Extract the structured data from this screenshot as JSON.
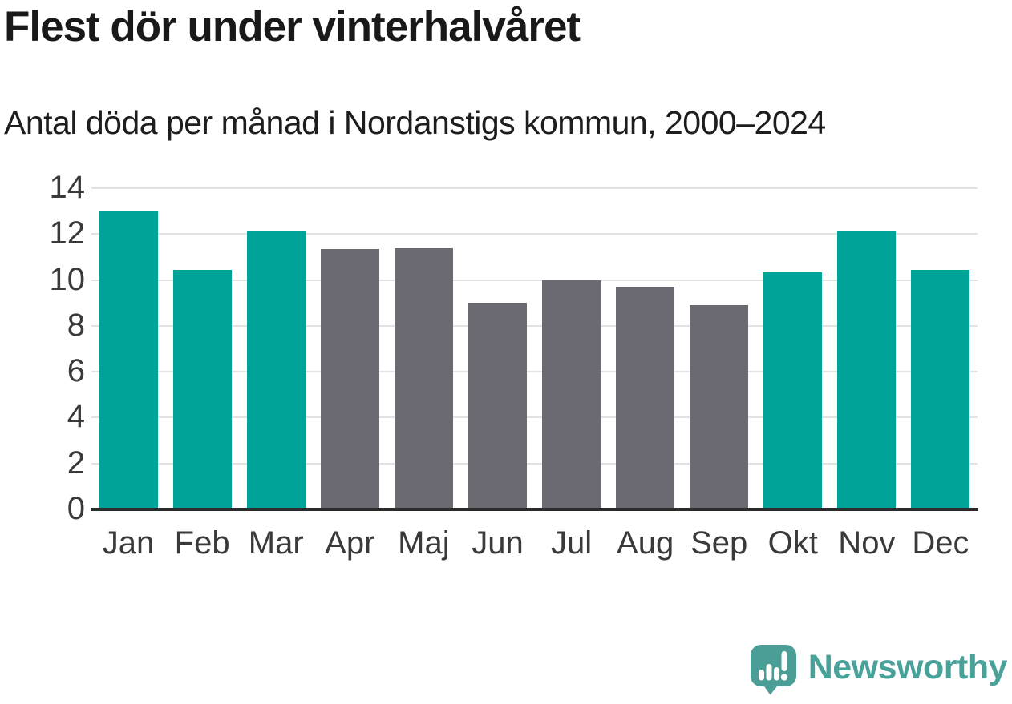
{
  "chart_data": {
    "type": "bar",
    "title": "Flest dör under vinterhalvåret",
    "subtitle": "Antal döda per månad i Nordanstigs kommun, 2000–2024",
    "categories": [
      "Jan",
      "Feb",
      "Mar",
      "Apr",
      "Maj",
      "Jun",
      "Jul",
      "Aug",
      "Sep",
      "Okt",
      "Nov",
      "Dec"
    ],
    "values": [
      13.0,
      10.45,
      12.15,
      11.35,
      11.4,
      9.0,
      10.0,
      9.7,
      8.9,
      10.35,
      12.15,
      10.45
    ],
    "bar_color_keys": [
      "winter",
      "winter",
      "winter",
      "summer",
      "summer",
      "summer",
      "summer",
      "summer",
      "summer",
      "winter",
      "winter",
      "winter"
    ],
    "colors": {
      "winter": "#00a398",
      "summer": "#6b6a72"
    },
    "xlabel": "",
    "ylabel": "",
    "ylim": [
      0,
      14
    ],
    "yticks": [
      0,
      2,
      4,
      6,
      8,
      10,
      12,
      14
    ],
    "grid": "horizontal",
    "legend": "none"
  },
  "footer": {
    "brand": "Newsworthy",
    "brand_color": "#48a29a",
    "logo_color": "#4a9e96",
    "logo_icon": "newsworthy-speech-bubble-bar-chart-icon"
  }
}
